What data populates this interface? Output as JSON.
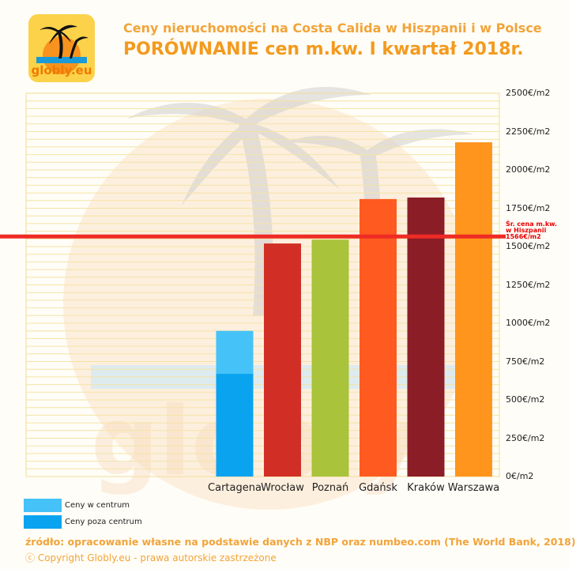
{
  "logo": {
    "text": "globly.eu"
  },
  "header": {
    "title_line1": "Ceny nieruchomości na Costa Calida w Hiszpanii i w Polsce",
    "title_line2": "PORÓWNANIE cen m.kw. I kwartał 2018r."
  },
  "chart_data": {
    "type": "bar",
    "categories": [
      "Cartagena",
      "Wrocław",
      "Poznań",
      "Gdańsk",
      "Kraków",
      "Warszawa"
    ],
    "values": [
      null,
      1520,
      1545,
      1810,
      1820,
      2180
    ],
    "stacked_series": [
      {
        "name": "Ceny poza centrum",
        "category": "Cartagena",
        "value": 670,
        "color": "#0aa3f0"
      },
      {
        "name": "Ceny w centrum",
        "category": "Cartagena",
        "value": 950,
        "color": "#45c2f7"
      }
    ],
    "bar_colors": [
      "#0aa3f0",
      "#d12f25",
      "#a9c33b",
      "#ff5a1f",
      "#8b1d27",
      "#ff951c"
    ],
    "ylim": [
      0,
      2500
    ],
    "yticks": [
      {
        "value": 0,
        "label": "0€/m2"
      },
      {
        "value": 250,
        "label": "250€/m2"
      },
      {
        "value": 500,
        "label": "500€/m2"
      },
      {
        "value": 750,
        "label": "750€/m2"
      },
      {
        "value": 1000,
        "label": "1000€/m2"
      },
      {
        "value": 1250,
        "label": "1250€/m2"
      },
      {
        "value": 1500,
        "label": "1500€/m2"
      },
      {
        "value": 1750,
        "label": "1750€/m2"
      },
      {
        "value": 2000,
        "label": "2000€/m2"
      },
      {
        "value": 2250,
        "label": "2250€/m2"
      },
      {
        "value": 2500,
        "label": "2500€/m2"
      }
    ],
    "grid": true,
    "reference_line": {
      "value": 1566,
      "color": "#ee2b24",
      "label": "Śr. cena m.kw.\nw Hiszpanii\n1566€/m2"
    },
    "legend": {
      "placement": "bottom-left",
      "items": [
        {
          "label": "Ceny w centrum",
          "color": "#45c2f7"
        },
        {
          "label": "Ceny poza centrum",
          "color": "#0aa3f0"
        }
      ]
    }
  },
  "footer": {
    "source": "źródło: opracowanie własne na podstawie danych z NBP oraz numbeo.com (The World Bank, 2018)",
    "copyright": "ⓒ Copyright Globly.eu - prawa autorskie zastrzeżone"
  }
}
